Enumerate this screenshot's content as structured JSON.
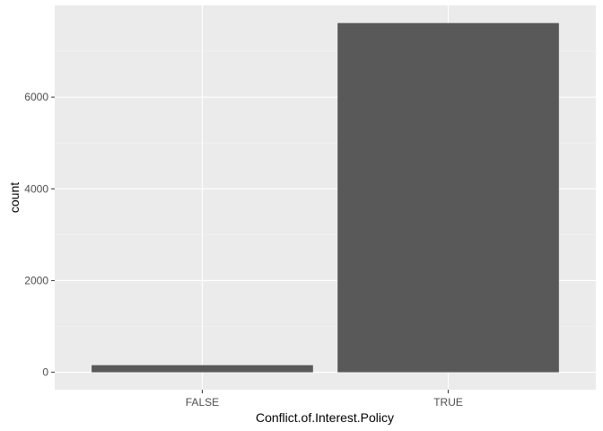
{
  "chart_data": {
    "type": "bar",
    "title": "",
    "xlabel": "Conflict.of.Interest.Policy",
    "ylabel": "count",
    "categories": [
      "FALSE",
      "TRUE"
    ],
    "values": [
      155,
      7615
    ],
    "ylim": [
      -380,
      8000
    ],
    "yticks": [
      0,
      2000,
      4000,
      6000
    ],
    "ytick_labels": [
      "0",
      "2000",
      "4000",
      "6000"
    ],
    "grid": true,
    "legend": "none",
    "colors": {
      "panel_background": "#ebebeb",
      "grid_major": "#ffffff",
      "grid_minor": "#f5f5f5",
      "bar_fill": "#595959",
      "tick_text": "#4d4d4d",
      "tick_mark": "#333333",
      "axis_title": "#000000"
    }
  }
}
